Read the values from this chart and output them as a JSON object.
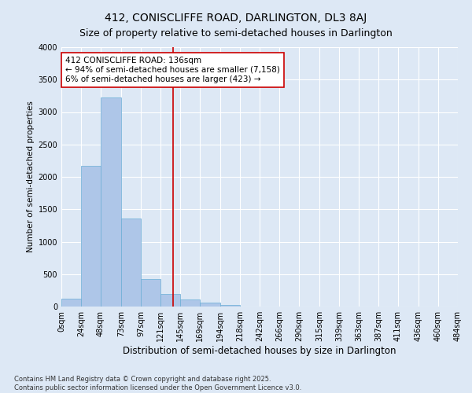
{
  "title": "412, CONISCLIFFE ROAD, DARLINGTON, DL3 8AJ",
  "subtitle": "Size of property relative to semi-detached houses in Darlington",
  "xlabel": "Distribution of semi-detached houses by size in Darlington",
  "ylabel": "Number of semi-detached properties",
  "bar_color": "#aec6e8",
  "bar_edge_color": "#6aaed6",
  "background_color": "#dde8f5",
  "plot_bg_color": "#dde8f5",
  "grid_color": "#ffffff",
  "vline_x": 136,
  "vline_color": "#cc0000",
  "annotation_text": "412 CONISCLIFFE ROAD: 136sqm\n← 94% of semi-detached houses are smaller (7,158)\n6% of semi-detached houses are larger (423) →",
  "annotation_box_color": "white",
  "annotation_box_edge_color": "#cc0000",
  "bin_edges": [
    0,
    24,
    48,
    73,
    97,
    121,
    145,
    169,
    194,
    218,
    242,
    266,
    290,
    315,
    339,
    363,
    387,
    411,
    436,
    460,
    484
  ],
  "bin_values": [
    120,
    2170,
    3220,
    1360,
    420,
    200,
    110,
    55,
    30,
    0,
    0,
    0,
    0,
    0,
    0,
    0,
    0,
    0,
    0,
    0
  ],
  "ylim": [
    0,
    4000
  ],
  "yticks": [
    0,
    500,
    1000,
    1500,
    2000,
    2500,
    3000,
    3500,
    4000
  ],
  "footer": "Contains HM Land Registry data © Crown copyright and database right 2025.\nContains public sector information licensed under the Open Government Licence v3.0.",
  "title_fontsize": 10,
  "subtitle_fontsize": 9,
  "xlabel_fontsize": 8.5,
  "ylabel_fontsize": 7.5,
  "tick_fontsize": 7,
  "annotation_fontsize": 7.5,
  "footer_fontsize": 6
}
